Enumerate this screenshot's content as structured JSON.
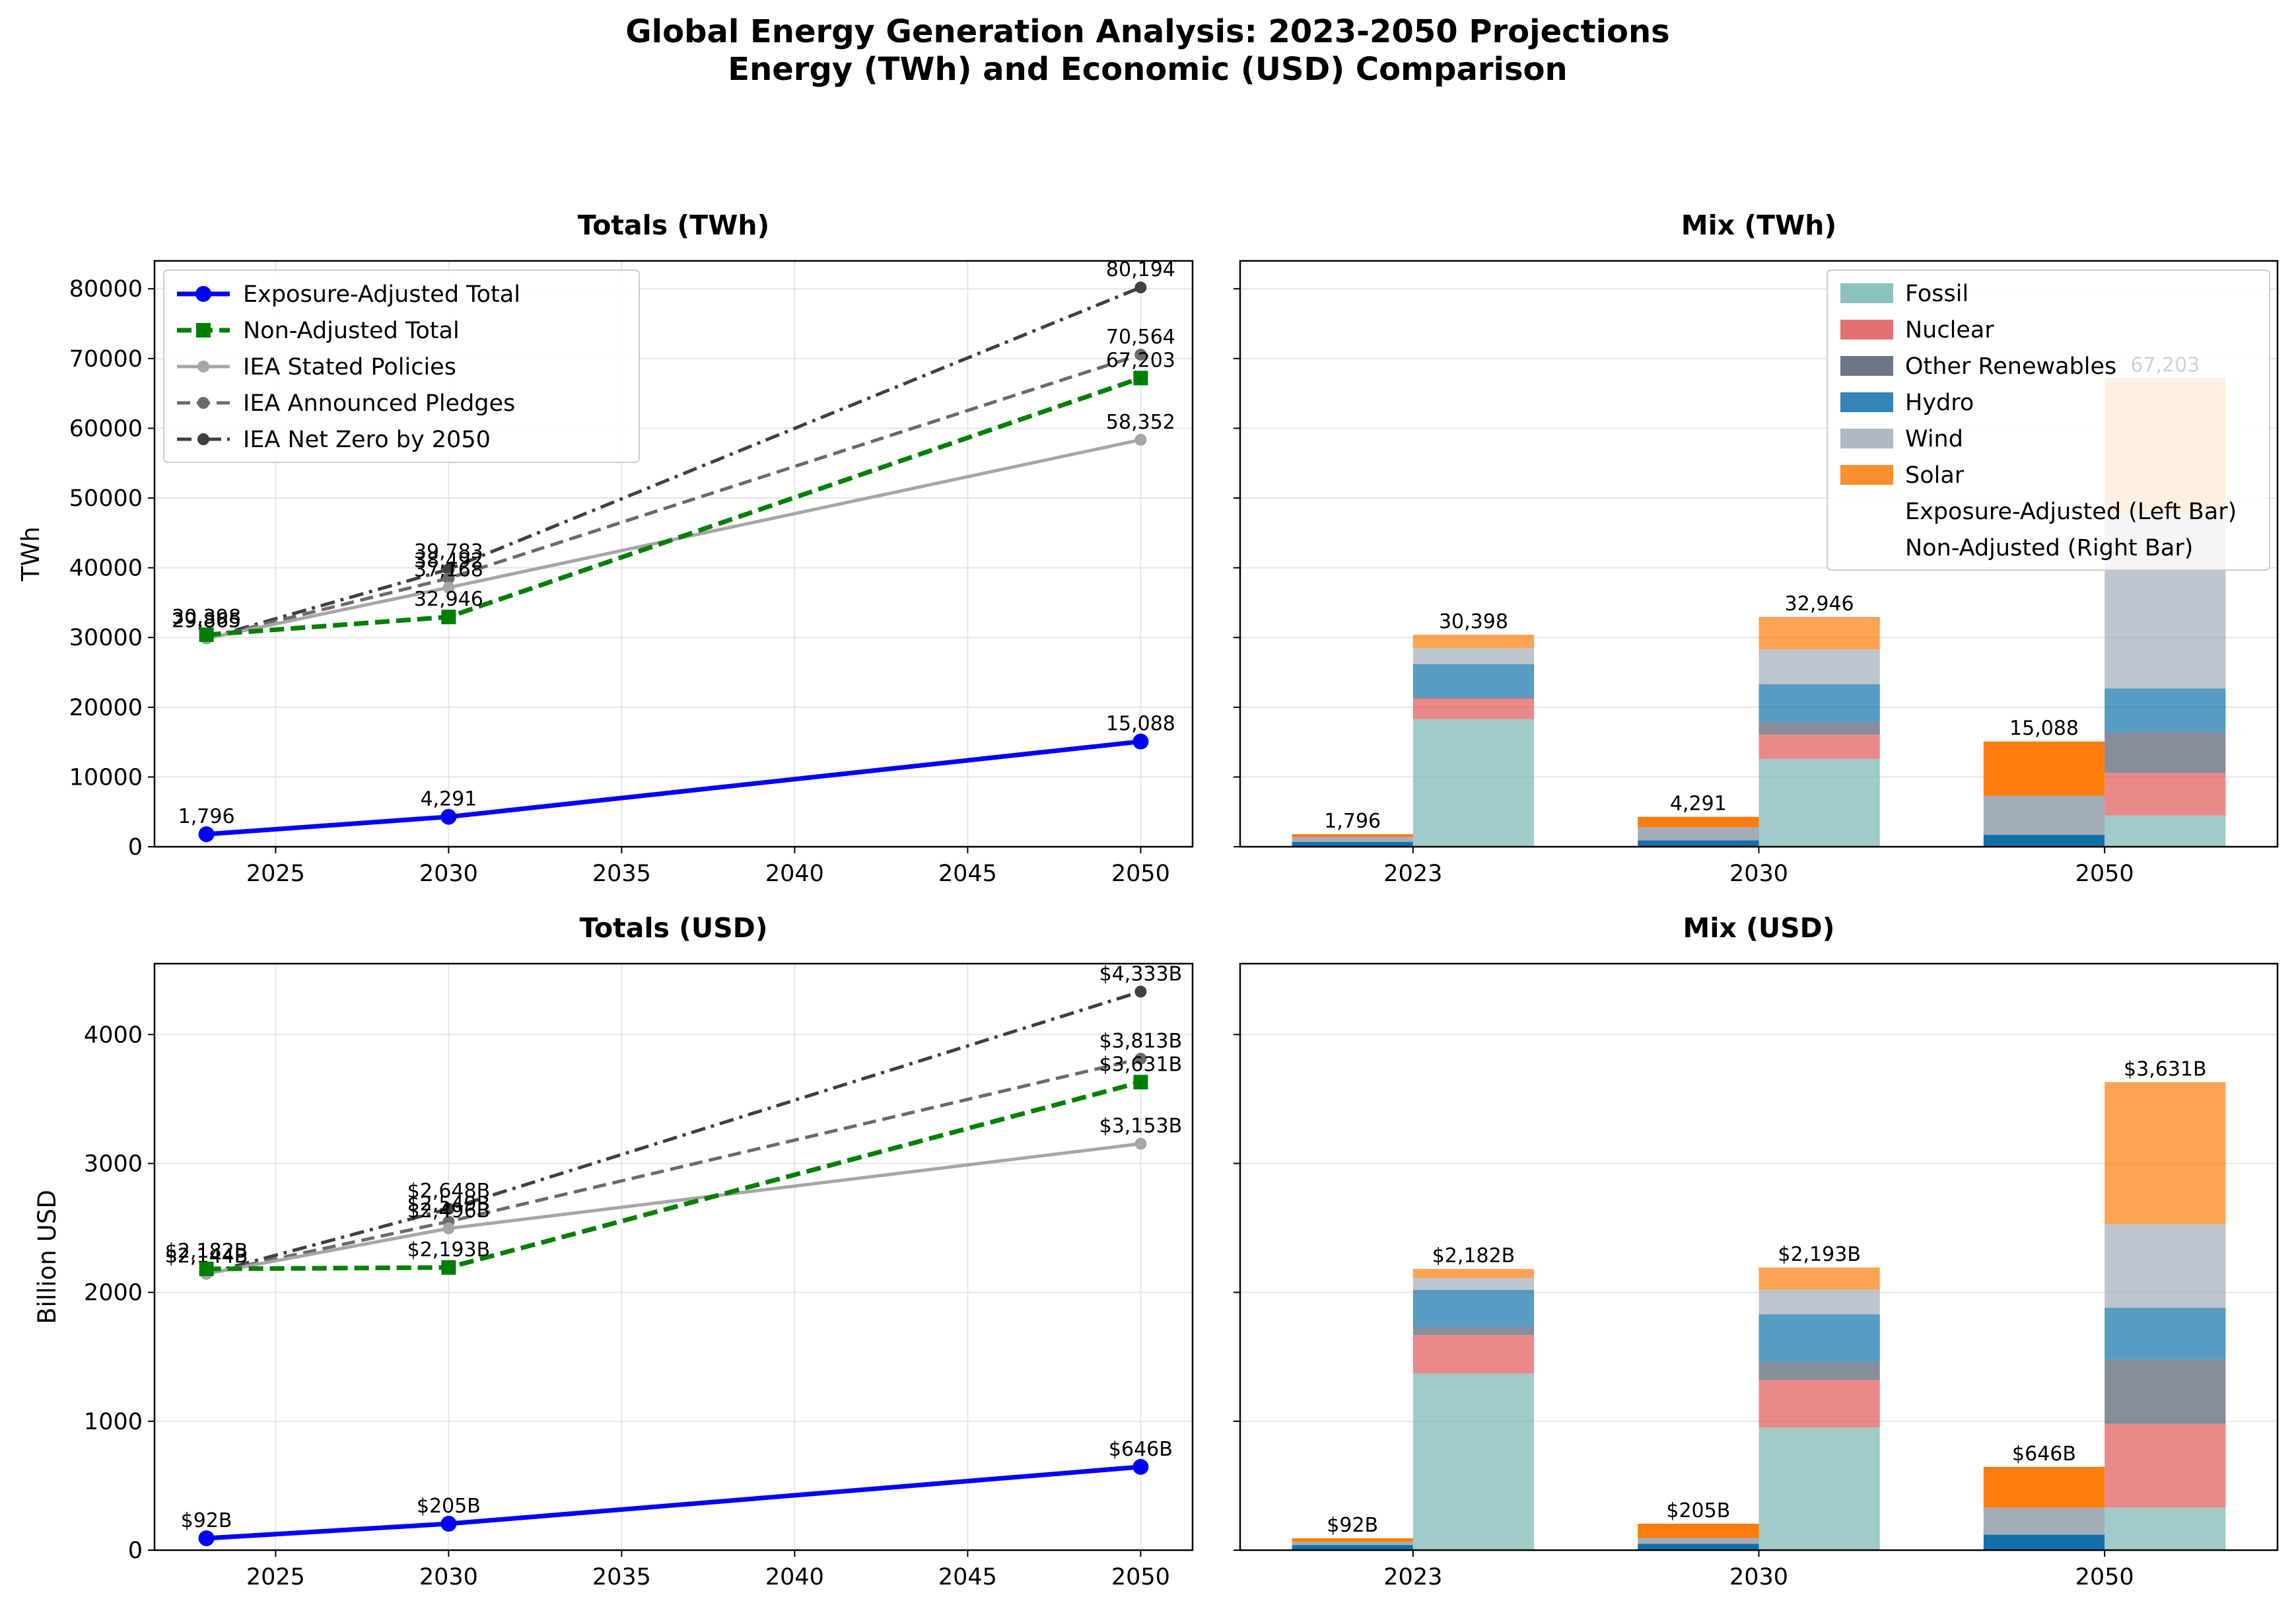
{
  "figure": {
    "title_line1": "Global Energy Generation Analysis: 2023-2050 Projections",
    "title_line2": "Energy (TWh) and Economic (USD) Comparison"
  },
  "chart_data": [
    {
      "id": "totals_twh",
      "type": "line",
      "title": "Totals (TWh)",
      "xlabel": "",
      "ylabel": "TWh",
      "xlim": [
        2021.5,
        2051.5
      ],
      "ylim": [
        0,
        84000
      ],
      "xticks": [
        2025,
        2030,
        2035,
        2040,
        2045,
        2050
      ],
      "yticks": [
        0,
        10000,
        20000,
        30000,
        40000,
        50000,
        60000,
        70000,
        80000
      ],
      "grid": true,
      "legend_position": "upper-left",
      "series": [
        {
          "name": "Exposure-Adjusted Total",
          "color": "#0000ff",
          "dash": "",
          "marker": "circle",
          "width": 7,
          "x": [
            2023,
            2030,
            2050
          ],
          "y": [
            1796,
            4291,
            15088
          ],
          "labels": [
            "1,796",
            "4,291",
            "15,088"
          ]
        },
        {
          "name": "Non-Adjusted Total",
          "color": "#008000",
          "dash": "22,10",
          "marker": "square",
          "width": 7,
          "x": [
            2023,
            2030,
            2050
          ],
          "y": [
            30398,
            32946,
            67203
          ],
          "labels": [
            "30,398",
            "32,946",
            "67,203"
          ]
        },
        {
          "name": "IEA Stated Policies",
          "color": "#a6a6a6",
          "dash": "",
          "marker": "circle",
          "width": 5,
          "x": [
            2023,
            2030,
            2050
          ],
          "y": [
            29865,
            37168,
            58352
          ],
          "labels": [
            "29,865",
            "37,168",
            "58,352"
          ]
        },
        {
          "name": "IEA Announced Pledges",
          "color": "#6b6b6b",
          "dash": "20,10",
          "marker": "circle",
          "width": 5,
          "x": [
            2023,
            2030,
            2050
          ],
          "y": [
            29865,
            38492,
            70564
          ],
          "labels": [
            "29,865",
            "38,492",
            "70,564"
          ]
        },
        {
          "name": "IEA Net Zero by 2050",
          "color": "#404040",
          "dash": "22,9,5,9",
          "marker": "circle",
          "width": 5,
          "x": [
            2023,
            2030,
            2050
          ],
          "y": [
            29865,
            39783,
            80194
          ],
          "labels": [
            "29,865",
            "39,783",
            "80,194"
          ]
        }
      ]
    },
    {
      "id": "mix_twh",
      "type": "bar",
      "stacked": true,
      "title": "Mix (TWh)",
      "ylim": [
        0,
        84000
      ],
      "yticks": [
        0,
        10000,
        20000,
        30000,
        40000,
        50000,
        60000,
        70000,
        80000
      ],
      "categories": [
        "2023",
        "2030",
        "2050"
      ],
      "grid": true,
      "legend_position": "upper-right",
      "series": [
        {
          "name": "Fossil",
          "color": "#76b7b2",
          "adjusted": [
            0,
            0,
            0
          ],
          "non_adjusted": [
            18300,
            12600,
            4500
          ]
        },
        {
          "name": "Nuclear",
          "color": "#e15759",
          "adjusted": [
            0,
            0,
            0
          ],
          "non_adjusted": [
            2900,
            3500,
            6100
          ]
        },
        {
          "name": "Other Renewables",
          "color": "#525e72",
          "adjusted": [
            0,
            0,
            0
          ],
          "non_adjusted": [
            300,
            1800,
            5800
          ]
        },
        {
          "name": "Hydro",
          "color": "#1170aa",
          "adjusted": [
            700,
            900,
            1700
          ],
          "non_adjusted": [
            4700,
            5400,
            6300
          ]
        },
        {
          "name": "Wind",
          "color": "#a3acb9",
          "adjusted": [
            700,
            1900,
            5600
          ],
          "non_adjusted": [
            2300,
            5000,
            25000
          ]
        },
        {
          "name": "Solar",
          "color": "#fc7d0b",
          "adjusted": [
            396,
            1491,
            7788
          ],
          "non_adjusted": [
            1898,
            4646,
            19503
          ]
        }
      ],
      "totals_adjusted": [
        "1,796",
        "4,291",
        "15,088"
      ],
      "totals_non_adjusted": [
        "30,398",
        "32,946",
        "67,203"
      ],
      "legend_extra": [
        "Exposure-Adjusted (Left Bar)",
        "Non-Adjusted (Right Bar)"
      ]
    },
    {
      "id": "totals_usd",
      "type": "line",
      "title": "Totals (USD)",
      "xlabel": "",
      "ylabel": "Billion USD",
      "xlim": [
        2021.5,
        2051.5
      ],
      "ylim": [
        0,
        4550
      ],
      "xticks": [
        2025,
        2030,
        2035,
        2040,
        2045,
        2050
      ],
      "yticks": [
        0,
        1000,
        2000,
        3000,
        4000
      ],
      "grid": true,
      "series": [
        {
          "name": "Exposure-Adjusted Total",
          "color": "#0000ff",
          "dash": "",
          "marker": "circle",
          "width": 7,
          "x": [
            2023,
            2030,
            2050
          ],
          "y": [
            92,
            205,
            646
          ],
          "labels": [
            "$92B",
            "$205B",
            "$646B"
          ]
        },
        {
          "name": "Non-Adjusted Total",
          "color": "#008000",
          "dash": "22,10",
          "marker": "square",
          "width": 7,
          "x": [
            2023,
            2030,
            2050
          ],
          "y": [
            2182,
            2193,
            3631
          ],
          "labels": [
            "$2,182B",
            "$2,193B",
            "$3,631B"
          ]
        },
        {
          "name": "IEA Stated Policies",
          "color": "#a6a6a6",
          "dash": "",
          "marker": "circle",
          "width": 5,
          "x": [
            2023,
            2030,
            2050
          ],
          "y": [
            2144,
            2496,
            3153
          ],
          "labels": [
            "$2,144B",
            "$2,496B",
            "$3,153B"
          ]
        },
        {
          "name": "IEA Announced Pledges",
          "color": "#6b6b6b",
          "dash": "20,10",
          "marker": "circle",
          "width": 5,
          "x": [
            2023,
            2030,
            2050
          ],
          "y": [
            2144,
            2549,
            3813
          ],
          "labels": [
            "$2,144B",
            "$2,549B",
            "$3,813B"
          ]
        },
        {
          "name": "IEA Net Zero by 2050",
          "color": "#404040",
          "dash": "22,9,5,9",
          "marker": "circle",
          "width": 5,
          "x": [
            2023,
            2030,
            2050
          ],
          "y": [
            2144,
            2648,
            4333
          ],
          "labels": [
            "$2,144B",
            "$2,648B",
            "$4,333B"
          ]
        }
      ]
    },
    {
      "id": "mix_usd",
      "type": "bar",
      "stacked": true,
      "title": "Mix (USD)",
      "ylim": [
        0,
        4550
      ],
      "yticks": [
        0,
        1000,
        2000,
        3000,
        4000
      ],
      "categories": [
        "2023",
        "2030",
        "2050"
      ],
      "grid": true,
      "series": [
        {
          "name": "Fossil",
          "color": "#76b7b2",
          "adjusted": [
            0,
            0,
            0
          ],
          "non_adjusted": [
            1370,
            950,
            330
          ]
        },
        {
          "name": "Nuclear",
          "color": "#e15759",
          "adjusted": [
            0,
            0,
            0
          ],
          "non_adjusted": [
            300,
            370,
            650
          ]
        },
        {
          "name": "Other Renewables",
          "color": "#525e72",
          "adjusted": [
            0,
            0,
            0
          ],
          "non_adjusted": [
            60,
            140,
            500
          ]
        },
        {
          "name": "Hydro",
          "color": "#1170aa",
          "adjusted": [
            40,
            50,
            120
          ],
          "non_adjusted": [
            290,
            370,
            400
          ]
        },
        {
          "name": "Wind",
          "color": "#a3acb9",
          "adjusted": [
            25,
            45,
            210
          ],
          "non_adjusted": [
            90,
            190,
            650
          ]
        },
        {
          "name": "Solar",
          "color": "#fc7d0b",
          "adjusted": [
            27,
            110,
            316
          ],
          "non_adjusted": [
            72,
            173,
            1101
          ]
        }
      ],
      "totals_adjusted": [
        "$92B",
        "$205B",
        "$646B"
      ],
      "totals_non_adjusted": [
        "$2,182B",
        "$2,193B",
        "$3,631B"
      ]
    }
  ]
}
